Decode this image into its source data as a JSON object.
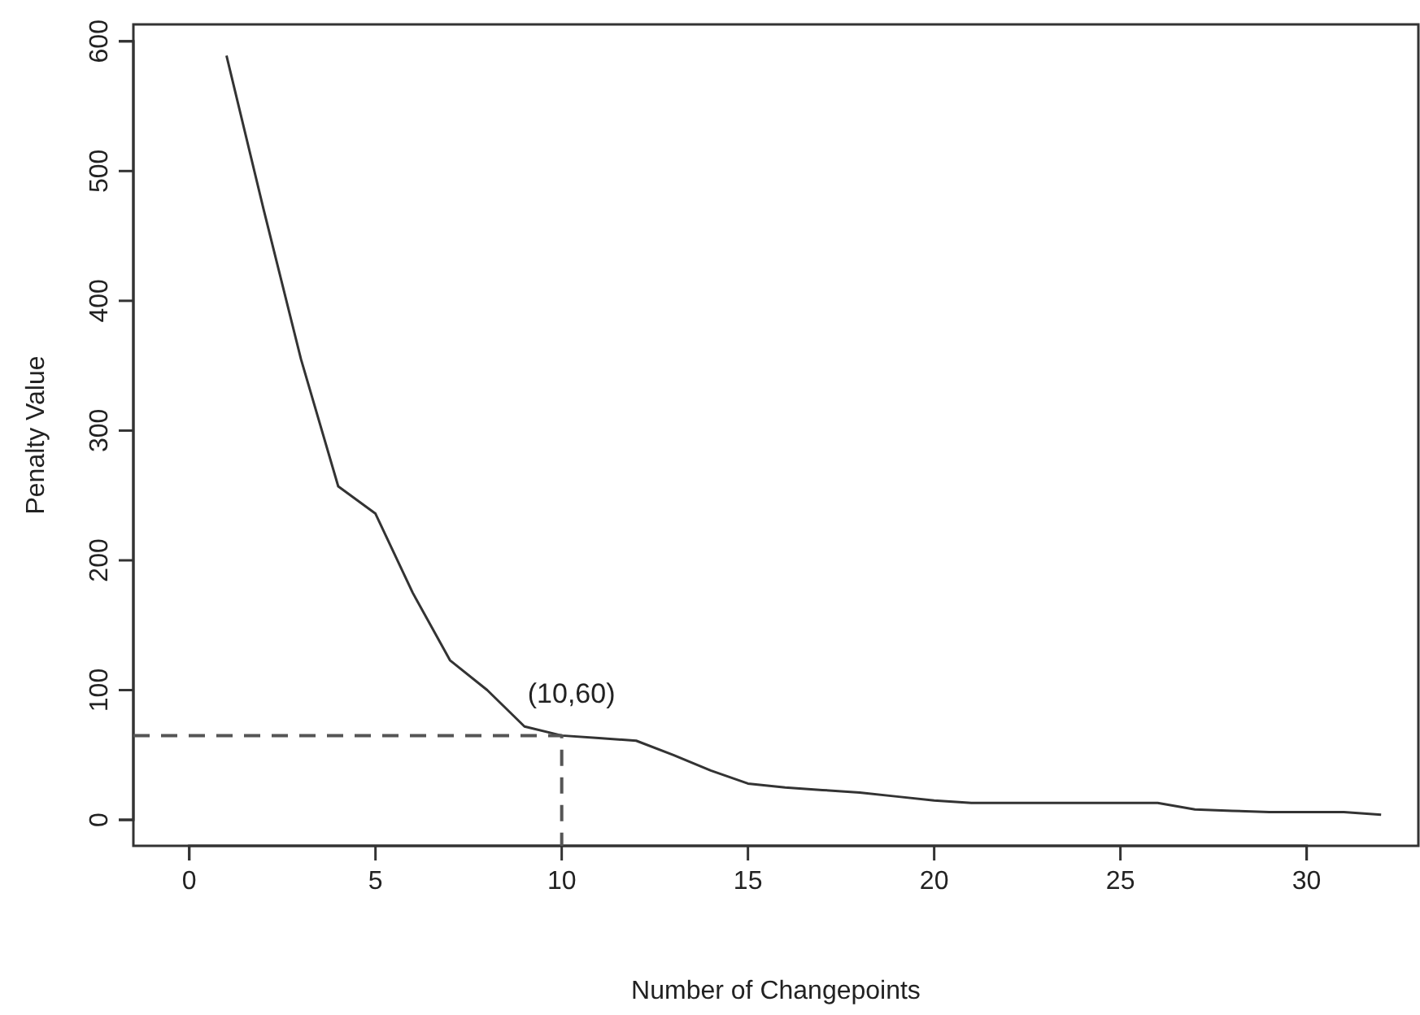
{
  "chart_data": {
    "type": "line",
    "xlabel": "Number of Changepoints",
    "ylabel": "Penalty Value",
    "xlim": [
      -1.5,
      33
    ],
    "ylim": [
      -20,
      613
    ],
    "xticks": [
      0,
      5,
      10,
      15,
      20,
      25,
      30
    ],
    "yticks": [
      0,
      100,
      200,
      300,
      400,
      500,
      600
    ],
    "series": [
      {
        "color": "#333333",
        "x": [
          1,
          2,
          3,
          4,
          5,
          6,
          7,
          8,
          9,
          10,
          11,
          12,
          13,
          14,
          15,
          16,
          17,
          18,
          19,
          20,
          21,
          22,
          23,
          24,
          25,
          26,
          27,
          28,
          29,
          30,
          31,
          32
        ],
        "values": [
          589,
          470,
          355,
          257,
          236,
          175,
          123,
          100,
          72,
          65,
          63,
          61,
          50,
          38,
          28,
          25,
          23,
          21,
          18,
          15,
          13,
          13,
          13,
          13,
          13,
          13,
          8,
          7,
          6,
          6,
          6,
          4
        ]
      },
      {
        "color": "#555555",
        "line_style": "dashed",
        "x": [
          -1.5,
          10,
          10
        ],
        "values": [
          65,
          65,
          -20
        ]
      }
    ],
    "annotations": [
      {
        "text": "(10,60)",
        "x": 10,
        "y": 65
      }
    ]
  }
}
